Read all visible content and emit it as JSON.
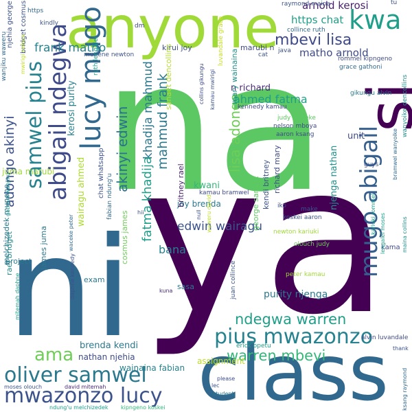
{
  "words": [
    {
      "text": "na",
      "color": "#5cc863"
    },
    {
      "text": "ya",
      "color": "#440154"
    },
    {
      "text": "ni",
      "color": "#31688e"
    },
    {
      "text": "class",
      "color": "#31688e"
    },
    {
      "text": "anyone",
      "color": "#a0da39"
    },
    {
      "text": "si",
      "color": "#440154"
    },
    {
      "text": "kwa",
      "color": "#1f9e89"
    },
    {
      "text": "abigail ndegwa",
      "color": "#3e4a89"
    },
    {
      "text": "lucy mugo",
      "color": "#31688e"
    },
    {
      "text": "samwel pius",
      "color": "#26828e"
    },
    {
      "text": "mugo abigail",
      "color": "#355f8d"
    },
    {
      "text": "pius mwazonzo",
      "color": "#26828e"
    },
    {
      "text": "oliver samwel",
      "color": "#2a788e"
    },
    {
      "text": "mwazonzo lucy",
      "color": "#3b528b"
    },
    {
      "text": "ama",
      "color": "#6ece58"
    },
    {
      "text": "warren mbevi",
      "color": "#35b779"
    },
    {
      "text": "ndegwa warren",
      "color": "#1f9e89"
    },
    {
      "text": "mbevi lisa",
      "color": "#3e4989"
    },
    {
      "text": "frank matho",
      "color": "#26828e"
    },
    {
      "text": "matho arnold",
      "color": "#3e4a89"
    },
    {
      "text": "arnold kerosi",
      "color": "#481f70"
    },
    {
      "text": "https chat",
      "color": "#1f9e89"
    },
    {
      "text": "lisa adongo",
      "color": "#6ece58"
    },
    {
      "text": "ahmed fatma",
      "color": "#1f9e89"
    },
    {
      "text": "akinyi edwin",
      "color": "#2c728e"
    },
    {
      "text": "adongo akinyi",
      "color": "#3b528b"
    },
    {
      "text": "mahmud frank",
      "color": "#2a788e"
    },
    {
      "text": "khadija mahmud",
      "color": "#2a788e"
    },
    {
      "text": "fatma khadija",
      "color": "#1f9e89"
    },
    {
      "text": "edwin wairagu",
      "color": "#3b528b"
    },
    {
      "text": "purity njenga",
      "color": "#2a788e"
    },
    {
      "text": "njenga nathan",
      "color": "#21918c"
    },
    {
      "text": "n richard",
      "color": "#482878"
    },
    {
      "text": "bana",
      "color": "#26828e"
    },
    {
      "text": "brenda kendi",
      "color": "#2a788e"
    },
    {
      "text": "nathan njehia",
      "color": "#3e4a89"
    },
    {
      "text": "wainaina fabian",
      "color": "#26828e"
    },
    {
      "text": "assignment",
      "color": "#bddf26"
    },
    {
      "text": "kerosi purity",
      "color": "#26828e"
    },
    {
      "text": "juma marubi",
      "color": "#a0da39"
    },
    {
      "text": "joy brenda",
      "color": "#2a788e"
    },
    {
      "text": "wairagu ahmed",
      "color": "#addc30"
    },
    {
      "text": "kirui joy",
      "color": "#3b528b"
    },
    {
      "text": "marubi n",
      "color": "#3e4a89"
    },
    {
      "text": "kwani",
      "color": "#35b779"
    },
    {
      "text": "mary wainaina",
      "color": "#21918c"
    },
    {
      "text": "sanaet dencollins",
      "color": "#b5de2b"
    },
    {
      "text": "chat whatsapp",
      "color": "#3b528b"
    },
    {
      "text": "george sanaet",
      "color": "#5ec962"
    },
    {
      "text": "richard mary",
      "color": "#3e4a89"
    },
    {
      "text": "kendi britney",
      "color": "#3b528b"
    },
    {
      "text": "britney rael",
      "color": "#482173"
    },
    {
      "text": "rael bridget",
      "color": "#228d8d"
    },
    {
      "text": "james juma",
      "color": "#2a788e"
    },
    {
      "text": "cosmus james",
      "color": "#6ece58"
    },
    {
      "text": "melchizedek munene",
      "color": "#2a788e"
    },
    {
      "text": "bridget cosmus",
      "color": "#3b528b"
    },
    {
      "text": "njehia george",
      "color": "#3b528b"
    },
    {
      "text": "unit",
      "color": "#3e4a89"
    },
    {
      "text": "exam",
      "color": "#2a788e"
    },
    {
      "text": "project",
      "color": "#2a788e"
    },
    {
      "text": "sasa",
      "color": "#2a788e"
    },
    {
      "text": "kama",
      "color": "#3e4a89"
    },
    {
      "text": "time",
      "color": "#440154"
    },
    {
      "text": "https",
      "color": "#31688e"
    },
    {
      "text": "kindly",
      "color": "#3b528b"
    },
    {
      "text": "dm",
      "color": "#3e4989"
    },
    {
      "text": "tu",
      "color": "#3b528b"
    },
    {
      "text": "raymond maina",
      "color": "#3b528b"
    },
    {
      "text": "collince ruth",
      "color": "#31688e"
    },
    {
      "text": "munene newton",
      "color": "#3b528b"
    },
    {
      "text": "java",
      "color": "#3b528b"
    },
    {
      "text": "cat",
      "color": "#3b528b"
    },
    {
      "text": "rommel kipngeno",
      "color": "#3e4a89"
    },
    {
      "text": "grace gathoni",
      "color": "#31688e"
    },
    {
      "text": "ruth lengalei",
      "color": "#1f9e89"
    },
    {
      "text": "wanjiku waweru",
      "color": "#31688e"
    },
    {
      "text": "mwirigi nelson",
      "color": "#c2df23"
    },
    {
      "text": "dencollins",
      "color": "#21918c"
    },
    {
      "text": "luvandale grace",
      "color": "#c8e020"
    },
    {
      "text": "kennedy kamau",
      "color": "#3e4a89"
    },
    {
      "text": "kamau mwirigi",
      "color": "#3b528b"
    },
    {
      "text": "collins gikungu",
      "color": "#3e4a89"
    },
    {
      "text": "judy waceke",
      "color": "#5cc863"
    },
    {
      "text": "nelson mboya",
      "color": "#3e4a89"
    },
    {
      "text": "aaron ksang",
      "color": "#3e4a89"
    },
    {
      "text": "gikungu alvin",
      "color": "#2a788e"
    },
    {
      "text": "wanyoike",
      "color": "#21918c"
    },
    {
      "text": "guys",
      "color": "#3b528b"
    },
    {
      "text": "bramwel wanyoike",
      "color": "#31688e"
    },
    {
      "text": "maina collins",
      "color": "#21918c"
    },
    {
      "text": "kamau bramwel",
      "color": "#3e4989"
    },
    {
      "text": "iko",
      "color": "#3e4a89"
    },
    {
      "text": "make",
      "color": "#3b528b"
    },
    {
      "text": "koskei aaron",
      "color": "#3b528b"
    },
    {
      "text": "kariuki rommel",
      "color": "#1f9e89"
    },
    {
      "text": "newton kariuki",
      "color": "#a0da39"
    },
    {
      "text": "olouch judy",
      "color": "#6ece58"
    },
    {
      "text": "peter kamau",
      "color": "#a0da39"
    },
    {
      "text": "lengalei moses",
      "color": "#1f9e89"
    },
    {
      "text": "waweru david",
      "color": "#bddf26"
    },
    {
      "text": "null",
      "color": "#3b528b"
    },
    {
      "text": "hii",
      "color": "#3b528b"
    },
    {
      "text": "fabian ndung'u",
      "color": "#31688e"
    },
    {
      "text": "gathoni wanjiku",
      "color": "#21918c"
    },
    {
      "text": "waceke peter",
      "color": "#31688e"
    },
    {
      "text": "daphne kennedy",
      "color": "#3b528b"
    },
    {
      "text": "mitemah daphne",
      "color": "#1f9e89"
    },
    {
      "text": "kuna",
      "color": "#482878"
    },
    {
      "text": "juan collince",
      "color": "#3b528b"
    },
    {
      "text": "alvin luvandale",
      "color": "#3e4a89"
    },
    {
      "text": "erick opetu",
      "color": "#1f9e89"
    },
    {
      "text": "thank",
      "color": "#3b528b"
    },
    {
      "text": "ksang raymond",
      "color": "#31688e"
    },
    {
      "text": "lec",
      "color": "#3b528b"
    },
    {
      "text": "please",
      "color": "#3e4a89"
    },
    {
      "text": "student",
      "color": "#2a788e"
    },
    {
      "text": "moses olouch",
      "color": "#3b528b"
    },
    {
      "text": "david mitemah",
      "color": "#482878"
    },
    {
      "text": "ndung'u melchizedek",
      "color": "#1f9e89"
    },
    {
      "text": "kipngeno koskei",
      "color": "#35b779"
    }
  ]
}
